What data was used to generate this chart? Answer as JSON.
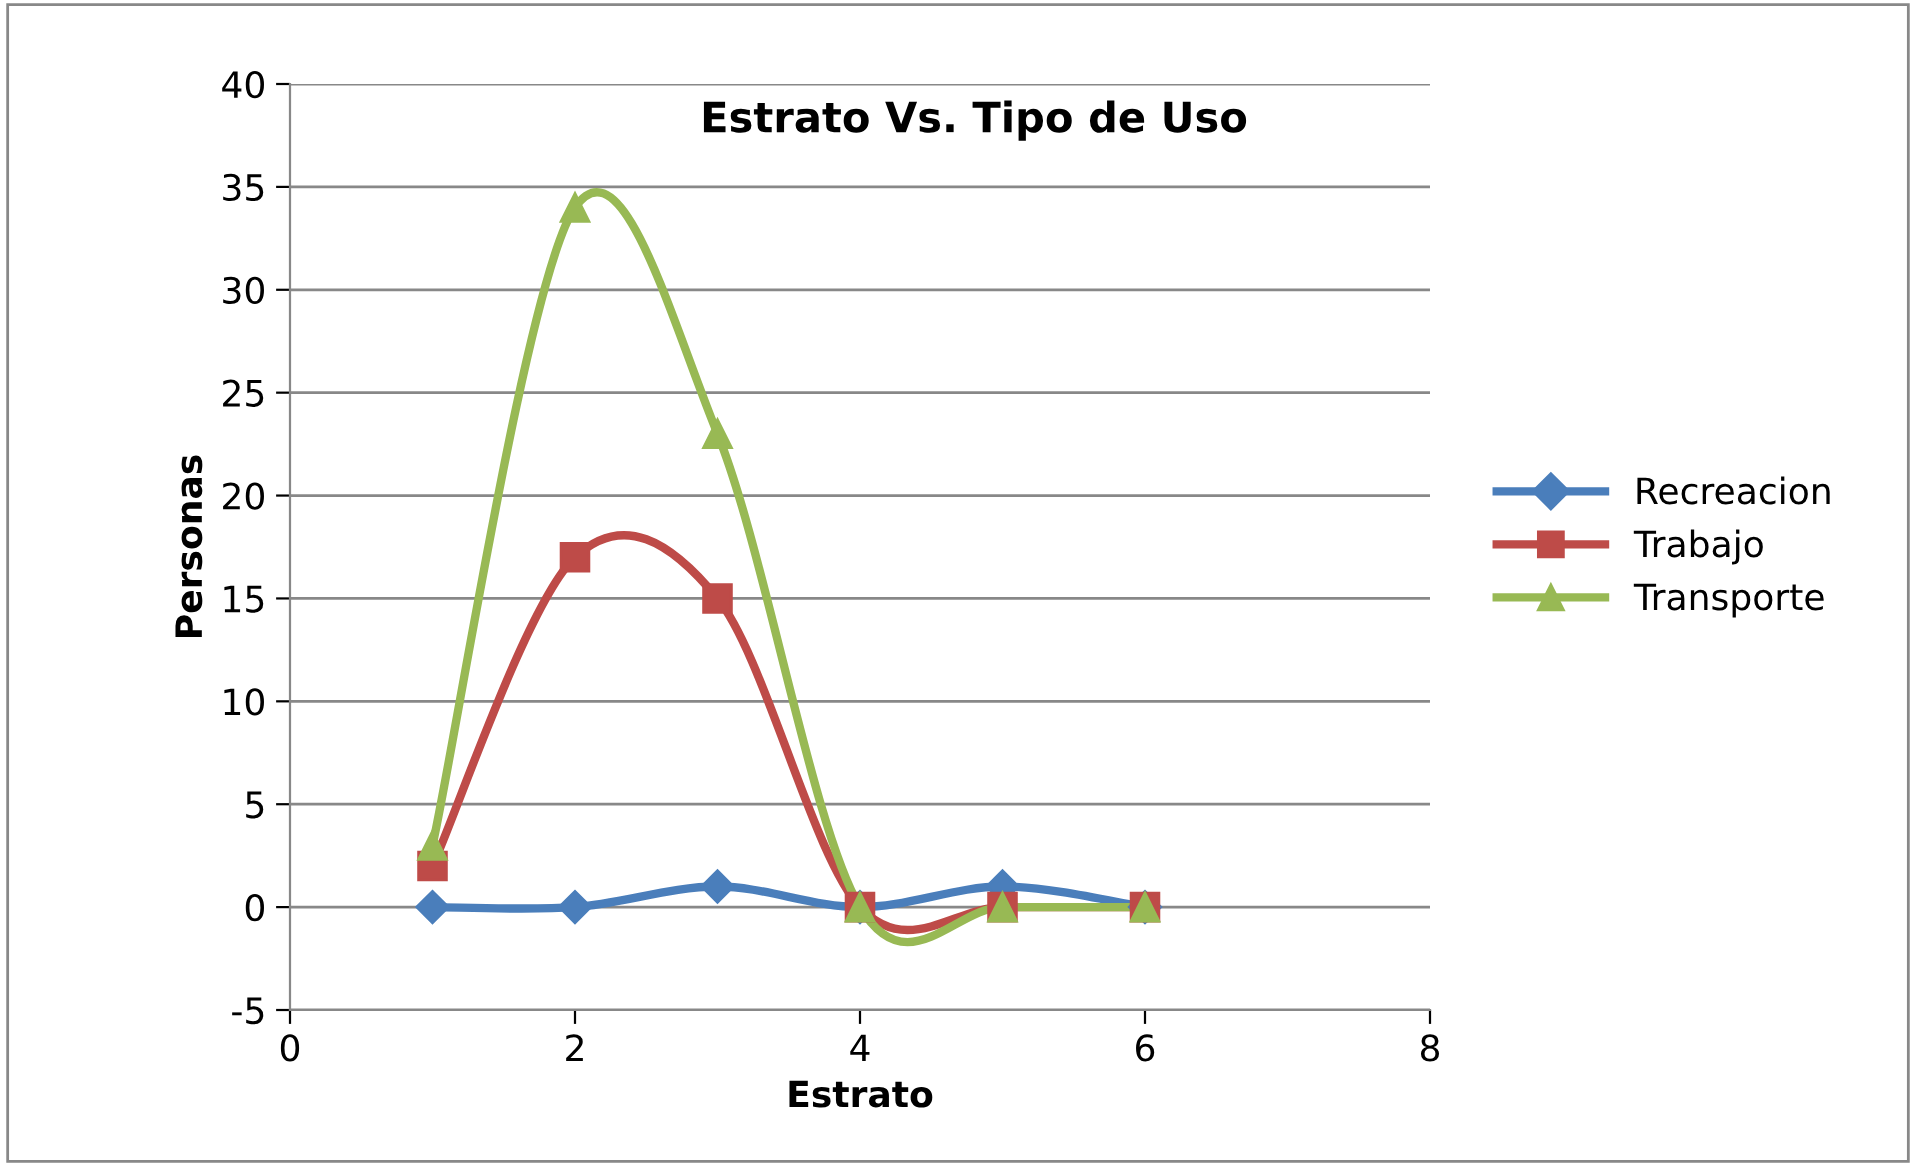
{
  "chart_data": {
    "type": "line",
    "title": "Estrato Vs. Tipo de Uso",
    "xlabel": "Estrato",
    "ylabel": "Personas",
    "x": [
      1,
      2,
      3,
      4,
      5,
      6
    ],
    "series": [
      {
        "name": "Recreacion",
        "color": "#4a7ebb",
        "marker": "diamond",
        "values": [
          0,
          0,
          1,
          0,
          1,
          0
        ]
      },
      {
        "name": "Trabajo",
        "color": "#be4b48",
        "marker": "square",
        "values": [
          2,
          17,
          15,
          0,
          0,
          0
        ]
      },
      {
        "name": "Transporte",
        "color": "#98b954",
        "marker": "triangle",
        "values": [
          3,
          34,
          23,
          0,
          0,
          0
        ]
      }
    ],
    "xlim": [
      0,
      8
    ],
    "xticks": [
      0,
      2,
      4,
      6,
      8
    ],
    "ylim": [
      -5,
      40
    ],
    "yticks": [
      -5,
      0,
      5,
      10,
      15,
      20,
      25,
      30,
      35,
      40
    ],
    "grid": "y",
    "legend": "right",
    "line_style": "solid"
  }
}
